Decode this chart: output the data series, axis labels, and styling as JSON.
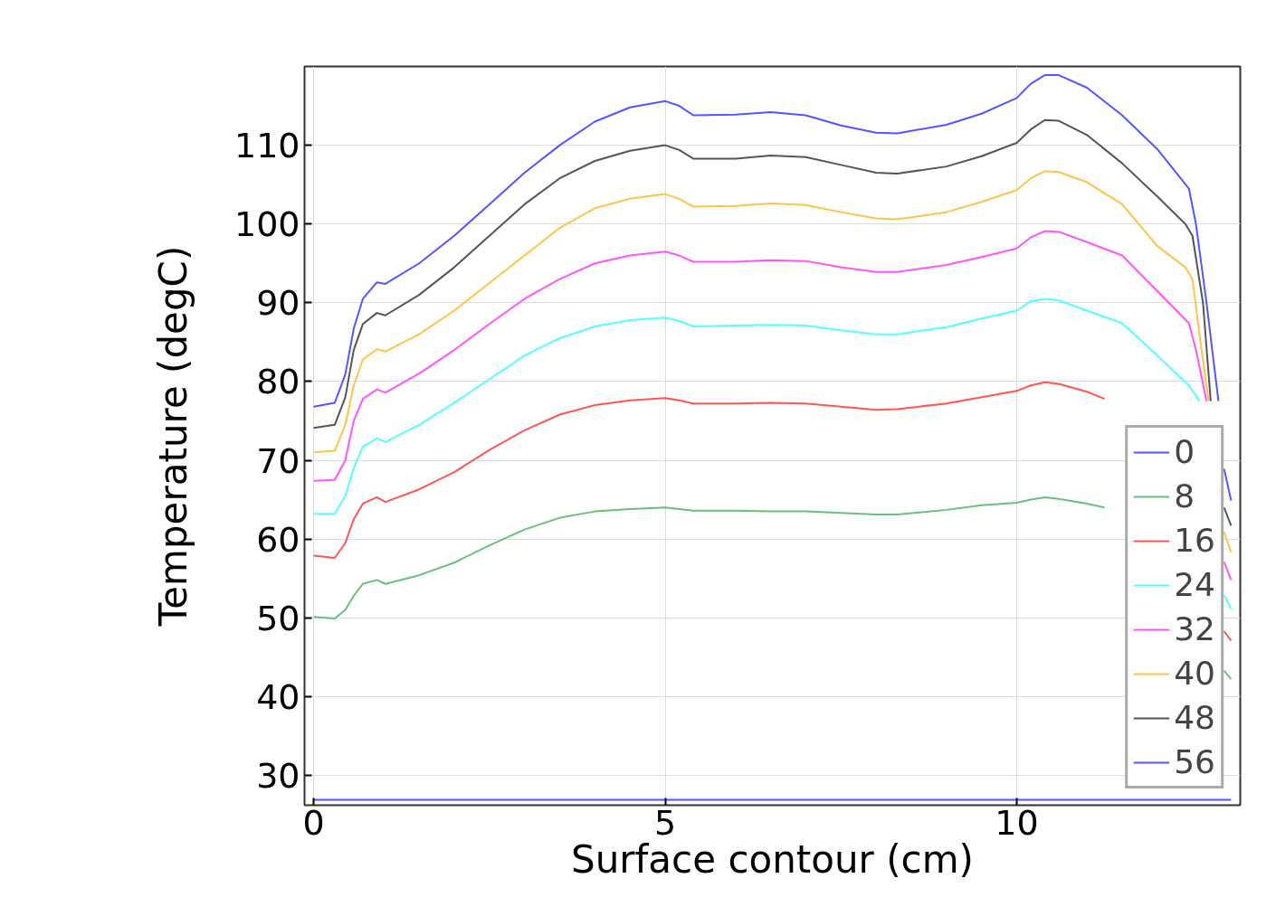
{
  "chart_data": {
    "type": "line",
    "xlabel": "Surface contour (cm)",
    "ylabel": "Temperature (degC)",
    "xlim": [
      -0.13,
      13.18
    ],
    "ylim": [
      26.2,
      120
    ],
    "xticks": [
      0,
      5,
      10
    ],
    "yticks": [
      30,
      40,
      50,
      60,
      70,
      80,
      90,
      100,
      110
    ],
    "grid": true,
    "legend": "bottom right",
    "line_style": "solid",
    "marker": "none",
    "series": [
      {
        "name": "0",
        "color": "#5555ff",
        "x": [
          0,
          13.05
        ],
        "values": [
          26.9,
          26.9
        ]
      },
      {
        "name": "8",
        "color": "#66c27a",
        "x": [
          0,
          0.3,
          0.45,
          0.57,
          0.7,
          0.9,
          1.02,
          1.5,
          2,
          2.5,
          3,
          3.5,
          4,
          4.5,
          5,
          5.2,
          5.4,
          6,
          6.5,
          7,
          7.5,
          8,
          8.3,
          9,
          9.5,
          10,
          10.2,
          10.4,
          10.6,
          11,
          11.25,
          11.3,
          12.95,
          13.05
        ],
        "values": [
          50.1,
          49.9,
          51,
          52.8,
          54.3,
          54.8,
          54.3,
          55.4,
          57,
          59.2,
          61.2,
          62.7,
          63.5,
          63.8,
          64,
          63.8,
          63.6,
          63.6,
          63.5,
          63.5,
          63.3,
          63.1,
          63.1,
          63.7,
          64.3,
          64.6,
          65,
          65.3,
          65.1,
          64.5,
          64,
          null,
          43.3,
          42.2
        ]
      },
      {
        "name": "16",
        "color": "#ff5555",
        "x": [
          0,
          0.3,
          0.45,
          0.57,
          0.7,
          0.9,
          1.02,
          1.5,
          2,
          2.5,
          3,
          3.5,
          4,
          4.5,
          5,
          5.2,
          5.4,
          6,
          6.5,
          7,
          7.5,
          8,
          8.3,
          9,
          9.5,
          10,
          10.2,
          10.4,
          10.6,
          11,
          11.25,
          11.3,
          12.95,
          13.05
        ],
        "values": [
          57.9,
          57.6,
          59.5,
          62.5,
          64.5,
          65.3,
          64.7,
          66.3,
          68.5,
          71.3,
          73.8,
          75.8,
          77,
          77.6,
          77.9,
          77.6,
          77.2,
          77.2,
          77.3,
          77.2,
          76.8,
          76.4,
          76.5,
          77.2,
          78,
          78.8,
          79.5,
          79.9,
          79.7,
          78.7,
          77.8,
          null,
          48.3,
          47.1
        ]
      },
      {
        "name": "24",
        "color": "#55ffff",
        "x": [
          0,
          0.3,
          0.45,
          0.57,
          0.7,
          0.9,
          1.02,
          1.5,
          2,
          2.5,
          3,
          3.5,
          4,
          4.5,
          5,
          5.2,
          5.4,
          6,
          6.5,
          7,
          7.5,
          8,
          8.3,
          9,
          9.5,
          10,
          10.2,
          10.4,
          10.6,
          11,
          11.5,
          12,
          12.45,
          12.6,
          12.9,
          12.95,
          13.05
        ],
        "values": [
          63.2,
          63.2,
          65.5,
          69,
          71.7,
          72.8,
          72.3,
          74.5,
          77.3,
          80.3,
          83.3,
          85.5,
          87,
          87.8,
          88.1,
          87.7,
          87,
          87.1,
          87.2,
          87.1,
          86.5,
          86,
          86,
          86.9,
          88,
          89,
          90.2,
          90.5,
          90.3,
          89,
          87.4,
          83.3,
          79.5,
          77.5,
          null,
          52.9,
          51.1
        ]
      },
      {
        "name": "32",
        "color": "#ff55ff",
        "x": [
          0,
          0.3,
          0.45,
          0.57,
          0.7,
          0.9,
          1.02,
          1.5,
          2,
          2.5,
          3,
          3.5,
          4,
          4.5,
          5,
          5.2,
          5.4,
          6,
          6.5,
          7,
          7.5,
          8,
          8.3,
          9,
          9.5,
          10,
          10.2,
          10.4,
          10.6,
          11,
          11.5,
          12,
          12.45,
          12.55,
          12.7,
          12.9,
          12.95,
          13.05
        ],
        "values": [
          67.4,
          67.5,
          70,
          75,
          77.8,
          79,
          78.6,
          81,
          84,
          87.3,
          90.5,
          93,
          95,
          96,
          96.5,
          96,
          95.2,
          95.2,
          95.4,
          95.3,
          94.5,
          93.9,
          93.9,
          94.8,
          95.8,
          96.9,
          98.3,
          99.1,
          99,
          97.7,
          96,
          91.5,
          87.4,
          84,
          77.5,
          null,
          57.1,
          54.8
        ]
      },
      {
        "name": "40",
        "color": "#ffc34d",
        "x": [
          0,
          0.3,
          0.45,
          0.57,
          0.7,
          0.9,
          1.02,
          1.5,
          2,
          2.5,
          3,
          3.5,
          4,
          4.5,
          5,
          5.2,
          5.4,
          6,
          6.5,
          7,
          7.5,
          8,
          8.3,
          9,
          9.5,
          10,
          10.2,
          10.4,
          10.6,
          11,
          11.5,
          12,
          12.4,
          12.5,
          12.6,
          12.73,
          12.9,
          12.95,
          13.05
        ],
        "values": [
          71,
          71.2,
          74.5,
          79.5,
          82.8,
          84.1,
          83.8,
          86,
          89,
          92.5,
          96,
          99.5,
          102,
          103.2,
          103.8,
          103.2,
          102.2,
          102.3,
          102.6,
          102.4,
          101.5,
          100.7,
          100.6,
          101.5,
          102.8,
          104.3,
          105.8,
          106.7,
          106.6,
          105.3,
          102.5,
          97.2,
          94.5,
          93,
          86,
          77.5,
          null,
          60.9,
          58.3
        ]
      },
      {
        "name": "48",
        "color": "#555555",
        "x": [
          0,
          0.3,
          0.45,
          0.57,
          0.7,
          0.9,
          1.02,
          1.5,
          2,
          2.5,
          3,
          3.5,
          4,
          4.5,
          5,
          5.2,
          5.4,
          6,
          6.5,
          7,
          7.5,
          8,
          8.3,
          9,
          9.5,
          10,
          10.2,
          10.4,
          10.6,
          11,
          11.5,
          12,
          12.4,
          12.5,
          12.65,
          12.76,
          12.9,
          12.95,
          13.05
        ],
        "values": [
          74.1,
          74.5,
          78,
          84,
          87.3,
          88.7,
          88.4,
          91,
          94.5,
          98.5,
          102.5,
          105.8,
          108,
          109.3,
          110,
          109.4,
          108.3,
          108.3,
          108.7,
          108.5,
          107.5,
          106.5,
          106.4,
          107.3,
          108.6,
          110.3,
          112,
          113.2,
          113.1,
          111.3,
          107.7,
          103.5,
          100,
          98.5,
          90,
          77.5,
          null,
          64,
          61.7
        ]
      },
      {
        "name": "56",
        "color": "#5555ff",
        "x": [
          0,
          0.3,
          0.45,
          0.57,
          0.7,
          0.9,
          1.02,
          1.5,
          2,
          2.5,
          3,
          3.5,
          4,
          4.5,
          5,
          5.2,
          5.4,
          6,
          6.5,
          7,
          7.5,
          8,
          8.3,
          9,
          9.5,
          10,
          10.2,
          10.4,
          10.6,
          11,
          11.5,
          12,
          12.45,
          12.55,
          12.7,
          12.87,
          12.91,
          12.95,
          13.05
        ],
        "values": [
          76.8,
          77.3,
          80.9,
          86.7,
          90.5,
          92.6,
          92.4,
          95,
          98.5,
          102.5,
          106.5,
          110,
          113,
          114.8,
          115.6,
          115,
          113.8,
          113.9,
          114.2,
          113.8,
          112.5,
          111.6,
          111.5,
          112.6,
          114,
          116,
          117.8,
          118.9,
          118.9,
          117.3,
          113.8,
          109.5,
          104.5,
          100,
          90,
          77.5,
          null,
          68.9,
          64.9
        ]
      }
    ]
  }
}
